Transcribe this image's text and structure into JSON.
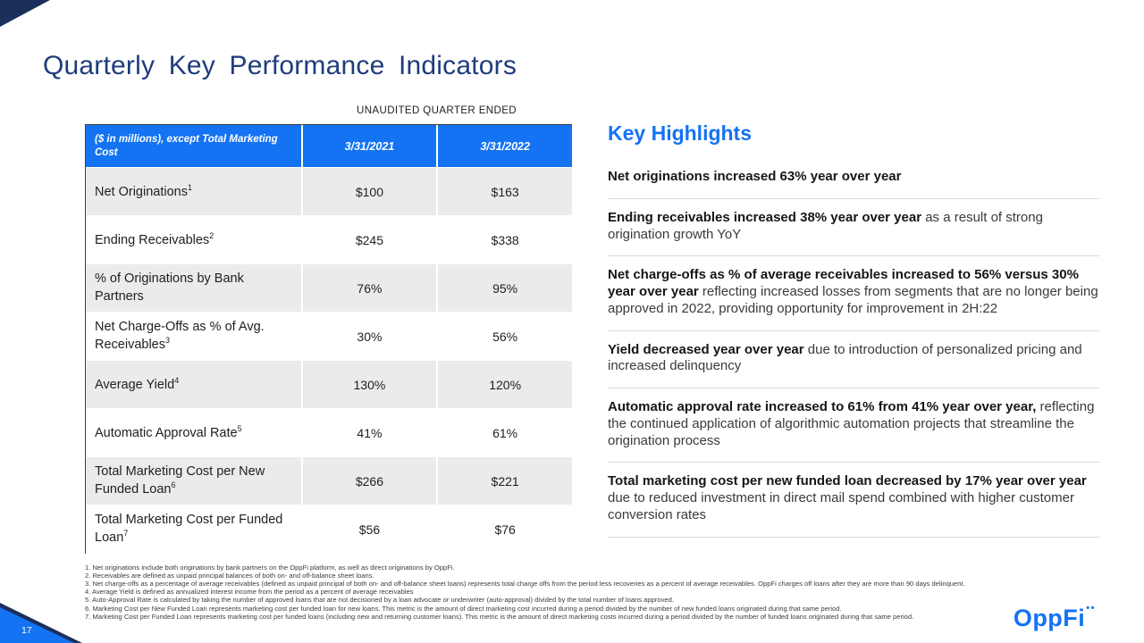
{
  "slide": {
    "title": "Quarterly Key Performance Indicators",
    "page_number": "17",
    "logo_text": "OppFi",
    "logo_dots": "••",
    "accent_blue": "#1473F2",
    "navy": "#1B2F5B",
    "title_color": "#1F3C7D",
    "row_alt_gray": "#EBEBEB"
  },
  "table": {
    "caption": "UNAUDITED QUARTER ENDED",
    "columns": [
      "($ in millions), except Total Marketing Cost",
      "3/31/2021",
      "3/31/2022"
    ],
    "rows": [
      {
        "label": "Net Originations",
        "sup": "1",
        "y2021": "$100",
        "y2022": "$163"
      },
      {
        "label": "Ending Receivables",
        "sup": "2",
        "y2021": "$245",
        "y2022": "$338"
      },
      {
        "label": "% of Originations by Bank Partners",
        "sup": "",
        "y2021": "76%",
        "y2022": "95%"
      },
      {
        "label": "Net Charge-Offs as % of Avg. Receivables",
        "sup": "3",
        "y2021": "30%",
        "y2022": "56%"
      },
      {
        "label": "Average Yield",
        "sup": "4",
        "y2021": "130%",
        "y2022": "120%"
      },
      {
        "label": "Automatic Approval Rate",
        "sup": "5",
        "y2021": "41%",
        "y2022": "61%"
      },
      {
        "label": "Total Marketing Cost per New Funded Loan",
        "sup": "6",
        "y2021": "$266",
        "y2022": "$221"
      },
      {
        "label": "Total Marketing Cost per Funded Loan",
        "sup": "7",
        "y2021": "$56",
        "y2022": "$76"
      }
    ]
  },
  "highlights": {
    "heading": "Key Highlights",
    "items": [
      {
        "bold": "Net originations increased 63% year over year",
        "rest": ""
      },
      {
        "bold": "Ending receivables increased 38% year over year",
        "rest": " as a result of strong origination growth YoY"
      },
      {
        "bold": "Net charge-offs as % of average receivables increased to 56% versus 30% year over year",
        "rest": " reflecting increased losses from segments that are no longer being approved in 2022, providing opportunity for improvement in 2H:22"
      },
      {
        "bold": "Yield decreased year over year",
        "rest": " due to introduction of personalized pricing and increased delinquency"
      },
      {
        "bold": "Automatic approval rate increased to 61% from 41% year over year,",
        "rest": " reflecting the continued application of algorithmic automation projects that streamline the origination process"
      },
      {
        "bold": "Total marketing cost per new funded loan decreased by 17% year over year",
        "rest": " due to reduced investment in direct mail spend combined with higher customer conversion rates"
      }
    ]
  },
  "footnotes": [
    "1. Net originations include both originations by bank partners on the OppFi platform, as well as direct originations by OppFi.",
    "2. Receivables are defined as unpaid principal balances of both on- and off-balance sheet loans.",
    "3. Net charge-offs as a percentage of average receivables (defined as unpaid principal of both on- and off-balance sheet loans) represents total charge offs from the period less recoveries as a percent of average receivables. OppFi charges off loans after they are more than 90 days delinquent.",
    "4. Average Yield is defined as annualized interest income from the period as a percent of average receivables",
    "5. Auto-Approval Rate is calculated by taking the number of approved loans that are not decisioned by a loan advocate or underwriter (auto-approval) divided by the total number of loans approved.",
    "6. Marketing Cost per New Funded Loan represents marketing cost per funded loan for new loans. This metric is the amount of direct marketing cost incurred during a period divided by the number of new funded loans originated during that same period.",
    "7. Marketing Cost per Funded Loan represents marketing cost per funded loans (including new and returning customer loans). This metric is the amount of direct marketing costs incurred during a period divided by the number of funded loans originated during that same period."
  ]
}
